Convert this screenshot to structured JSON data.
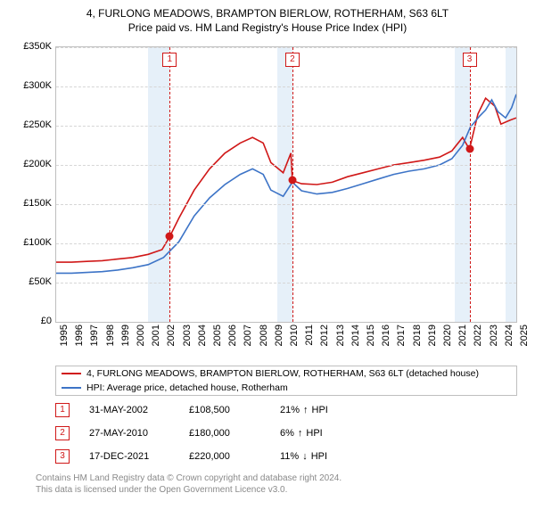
{
  "title": "4, FURLONG MEADOWS, BRAMPTON BIERLOW, ROTHERHAM, S63 6LT",
  "subtitle": "Price paid vs. HM Land Registry's House Price Index (HPI)",
  "chart": {
    "type": "line",
    "xlim": [
      1995,
      2025
    ],
    "ylim": [
      0,
      350000
    ],
    "ytick_step": 50000,
    "yticks": [
      "£0",
      "£50K",
      "£100K",
      "£150K",
      "£200K",
      "£250K",
      "£300K",
      "£350K"
    ],
    "xticks": [
      1995,
      1996,
      1997,
      1998,
      1999,
      2000,
      2001,
      2002,
      2003,
      2004,
      2005,
      2006,
      2007,
      2008,
      2009,
      2010,
      2011,
      2012,
      2013,
      2014,
      2015,
      2016,
      2017,
      2018,
      2019,
      2020,
      2021,
      2022,
      2023,
      2024,
      2025
    ],
    "grid_color": "#d6d6d6",
    "border_color": "#bfbfbf",
    "background_color": "#ffffff",
    "band_color": "#d6e6f5",
    "bands": [
      {
        "from": 2001.0,
        "to": 2002.4
      },
      {
        "from": 2009.4,
        "to": 2010.4
      },
      {
        "from": 2021.0,
        "to": 2022.0
      },
      {
        "from": 2024.3,
        "to": 2025.0
      }
    ],
    "vlines": [
      2002.4,
      2010.4,
      2021.95
    ],
    "marker_labels": [
      "1",
      "2",
      "3"
    ],
    "series": [
      {
        "name": "4, FURLONG MEADOWS, BRAMPTON BIERLOW, ROTHERHAM, S63 6LT (detached house)",
        "color": "#d01818",
        "width": 1.6,
        "data": [
          [
            1995,
            76000
          ],
          [
            1996,
            76000
          ],
          [
            1997,
            77000
          ],
          [
            1998,
            78000
          ],
          [
            1999,
            80000
          ],
          [
            2000,
            82000
          ],
          [
            2001,
            86000
          ],
          [
            2001.9,
            92000
          ],
          [
            2002.4,
            108500
          ],
          [
            2003,
            132000
          ],
          [
            2004,
            168000
          ],
          [
            2005,
            195000
          ],
          [
            2006,
            215000
          ],
          [
            2007,
            228000
          ],
          [
            2007.8,
            235000
          ],
          [
            2008.5,
            228000
          ],
          [
            2009,
            203000
          ],
          [
            2009.8,
            190000
          ],
          [
            2010.3,
            215000
          ],
          [
            2010.4,
            180000
          ],
          [
            2011,
            176000
          ],
          [
            2012,
            175000
          ],
          [
            2013,
            178000
          ],
          [
            2014,
            185000
          ],
          [
            2015,
            190000
          ],
          [
            2016,
            195000
          ],
          [
            2017,
            200000
          ],
          [
            2018,
            203000
          ],
          [
            2019,
            206000
          ],
          [
            2020,
            210000
          ],
          [
            2020.8,
            218000
          ],
          [
            2021.5,
            235000
          ],
          [
            2021.95,
            220000
          ],
          [
            2022.5,
            265000
          ],
          [
            2023,
            285000
          ],
          [
            2023.6,
            275000
          ],
          [
            2024,
            252000
          ],
          [
            2024.6,
            257000
          ],
          [
            2025,
            260000
          ]
        ]
      },
      {
        "name": "HPI: Average price, detached house, Rotherham",
        "color": "#3d74c7",
        "width": 1.4,
        "data": [
          [
            1995,
            62000
          ],
          [
            1996,
            62000
          ],
          [
            1997,
            63000
          ],
          [
            1998,
            64000
          ],
          [
            1999,
            66000
          ],
          [
            2000,
            69000
          ],
          [
            2001,
            73000
          ],
          [
            2002,
            82000
          ],
          [
            2003,
            102000
          ],
          [
            2004,
            135000
          ],
          [
            2005,
            158000
          ],
          [
            2006,
            175000
          ],
          [
            2007,
            188000
          ],
          [
            2007.8,
            195000
          ],
          [
            2008.5,
            188000
          ],
          [
            2009,
            168000
          ],
          [
            2009.8,
            160000
          ],
          [
            2010.4,
            178000
          ],
          [
            2011,
            167000
          ],
          [
            2012,
            163000
          ],
          [
            2013,
            165000
          ],
          [
            2014,
            170000
          ],
          [
            2015,
            176000
          ],
          [
            2016,
            182000
          ],
          [
            2017,
            188000
          ],
          [
            2018,
            192000
          ],
          [
            2019,
            195000
          ],
          [
            2020,
            200000
          ],
          [
            2020.8,
            208000
          ],
          [
            2021.5,
            225000
          ],
          [
            2022,
            248000
          ],
          [
            2022.6,
            262000
          ],
          [
            2023,
            270000
          ],
          [
            2023.4,
            283000
          ],
          [
            2023.8,
            268000
          ],
          [
            2024.3,
            260000
          ],
          [
            2024.7,
            273000
          ],
          [
            2025,
            290000
          ]
        ]
      }
    ],
    "points": [
      {
        "x": 2002.4,
        "y": 108500
      },
      {
        "x": 2010.4,
        "y": 180000
      },
      {
        "x": 2021.95,
        "y": 220000
      }
    ]
  },
  "legend": {
    "items": [
      {
        "color": "#d01818",
        "label": "4, FURLONG MEADOWS, BRAMPTON BIERLOW, ROTHERHAM, S63 6LT (detached house)"
      },
      {
        "color": "#3d74c7",
        "label": "HPI: Average price, detached house, Rotherham"
      }
    ]
  },
  "sales": [
    {
      "n": "1",
      "date": "31-MAY-2002",
      "price": "£108,500",
      "pct": "21%",
      "arrow": "↑",
      "vs": "HPI"
    },
    {
      "n": "2",
      "date": "27-MAY-2010",
      "price": "£180,000",
      "pct": "6%",
      "arrow": "↑",
      "vs": "HPI"
    },
    {
      "n": "3",
      "date": "17-DEC-2021",
      "price": "£220,000",
      "pct": "11%",
      "arrow": "↓",
      "vs": "HPI"
    }
  ],
  "footer": {
    "line1": "Contains HM Land Registry data © Crown copyright and database right 2024.",
    "line2": "This data is licensed under the Open Government Licence v3.0."
  }
}
